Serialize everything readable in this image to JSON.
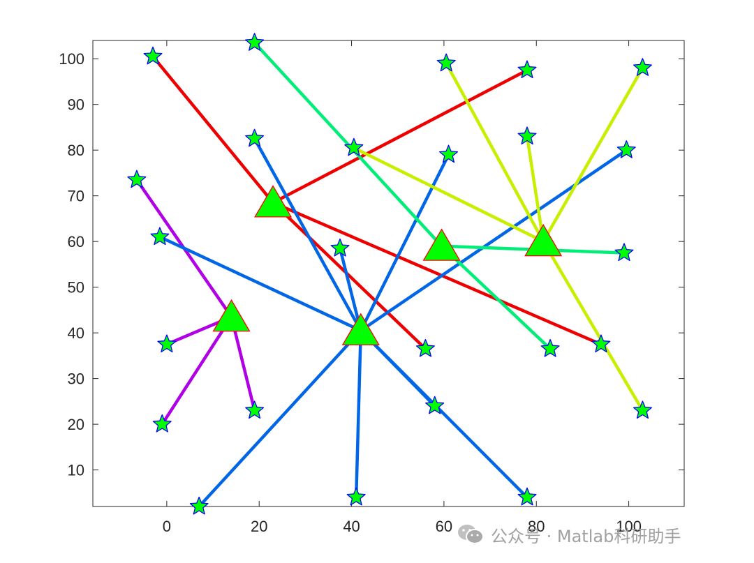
{
  "watermark": {
    "text": "公众号 · Matlab科研助手",
    "icon": "wechat-icon"
  },
  "chart_data": {
    "type": "scatter",
    "title": "",
    "xlabel": "",
    "ylabel": "",
    "xlim": [
      -16,
      112
    ],
    "ylim": [
      2,
      104
    ],
    "xticks": [
      0,
      20,
      40,
      60,
      80,
      100
    ],
    "yticks": [
      10,
      20,
      30,
      40,
      50,
      60,
      70,
      80,
      90,
      100
    ],
    "grid": false,
    "legend": "none",
    "center_marker": {
      "shape": "triangle",
      "fill": "#00ff00",
      "edge": "#ff0000"
    },
    "point_marker": {
      "shape": "star",
      "fill": "#00ff00",
      "edge": "#0000ff"
    },
    "clusters": [
      {
        "color": "#b000e6",
        "center": [
          14,
          43.5
        ],
        "points": [
          [
            -6.5,
            73.5
          ],
          [
            0,
            37.5
          ],
          [
            -1,
            20
          ],
          [
            19,
            23
          ]
        ]
      },
      {
        "color": "#ee0000",
        "center": [
          23,
          68.5
        ],
        "points": [
          [
            -3,
            100.5
          ],
          [
            78,
            97.5
          ],
          [
            56,
            36.5
          ],
          [
            94,
            37.5
          ]
        ]
      },
      {
        "color": "#0066e6",
        "center": [
          42,
          40.5
        ],
        "points": [
          [
            19,
            82.5
          ],
          [
            -1.5,
            61
          ],
          [
            37.5,
            58.5
          ],
          [
            61,
            79
          ],
          [
            99.5,
            80
          ],
          [
            58,
            24
          ],
          [
            78,
            4
          ],
          [
            41,
            4
          ],
          [
            7,
            2
          ]
        ]
      },
      {
        "color": "#00ee77",
        "center": [
          59.5,
          59
        ],
        "points": [
          [
            19,
            103.5
          ],
          [
            83,
            36.5
          ],
          [
            99,
            57.5
          ]
        ]
      },
      {
        "color": "#c8ee00",
        "center": [
          81.5,
          60
        ],
        "points": [
          [
            40.5,
            80.5
          ],
          [
            60.5,
            99
          ],
          [
            78,
            83
          ],
          [
            103,
            98
          ],
          [
            103,
            23
          ]
        ]
      }
    ]
  }
}
